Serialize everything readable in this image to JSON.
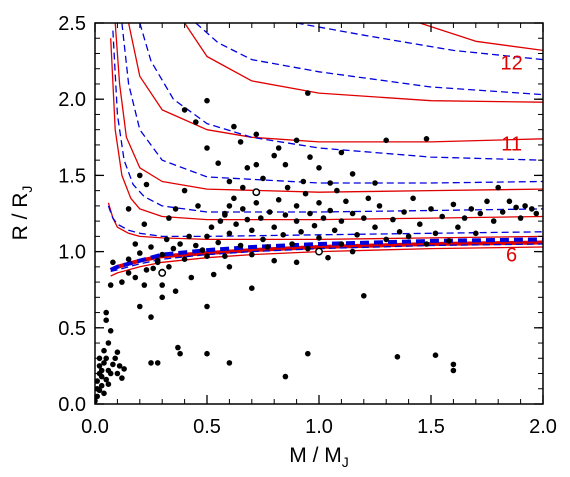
{
  "chart_data": {
    "type": "scatter",
    "xlabel": {
      "main": "M / M",
      "sub": "J"
    },
    "ylabel": {
      "main": "R / R",
      "sub": "J"
    },
    "xlim": [
      0.0,
      2.0
    ],
    "ylim": [
      0.0,
      2.5
    ],
    "x_ticks": [
      "0.0",
      "0.5",
      "1.0",
      "1.5",
      "2.0"
    ],
    "y_ticks": [
      "0.0",
      "0.5",
      "1.0",
      "1.5",
      "2.0",
      "2.5"
    ],
    "grid": false,
    "legend": "none",
    "colors": {
      "solid": "#e00000",
      "dashed": "#0000dd",
      "points": "#000000"
    },
    "curve_labels": [
      {
        "text": "12",
        "x": 1.86,
        "y": 2.24
      },
      {
        "text": "11",
        "x": 1.86,
        "y": 1.71
      },
      {
        "text": "6",
        "x": 1.86,
        "y": 0.98
      }
    ],
    "model_curves": [
      {
        "style": "solid-thick",
        "points": [
          [
            0.07,
            0.88
          ],
          [
            0.1,
            0.9
          ],
          [
            0.2,
            0.94
          ],
          [
            0.3,
            0.97
          ],
          [
            0.5,
            0.99
          ],
          [
            0.7,
            1.01
          ],
          [
            1.0,
            1.03
          ],
          [
            1.5,
            1.05
          ],
          [
            2.0,
            1.06
          ]
        ]
      },
      {
        "style": "dashed-thick",
        "points": [
          [
            0.07,
            0.88
          ],
          [
            0.1,
            0.9
          ],
          [
            0.2,
            0.94
          ],
          [
            0.3,
            0.98
          ],
          [
            0.5,
            1.01
          ],
          [
            0.7,
            1.03
          ],
          [
            1.0,
            1.05
          ],
          [
            1.5,
            1.07
          ],
          [
            2.0,
            1.08
          ]
        ]
      },
      {
        "style": "solid",
        "points": [
          [
            0.07,
            0.84
          ],
          [
            0.1,
            0.86
          ],
          [
            0.2,
            0.9
          ],
          [
            0.3,
            0.93
          ],
          [
            0.5,
            0.96
          ],
          [
            0.7,
            0.98
          ],
          [
            1.0,
            1.0
          ],
          [
            1.5,
            1.02
          ],
          [
            2.0,
            1.03
          ]
        ]
      },
      {
        "style": "dashed",
        "points": [
          [
            0.07,
            0.87
          ],
          [
            0.1,
            0.88
          ],
          [
            0.2,
            0.92
          ],
          [
            0.3,
            0.95
          ],
          [
            0.5,
            0.98
          ],
          [
            0.7,
            1.0
          ],
          [
            1.0,
            1.02
          ],
          [
            1.5,
            1.04
          ],
          [
            2.0,
            1.05
          ]
        ]
      },
      {
        "style": "solid",
        "points": [
          [
            0.06,
            1.32
          ],
          [
            0.08,
            1.22
          ],
          [
            0.1,
            1.16
          ],
          [
            0.15,
            1.12
          ],
          [
            0.2,
            1.1
          ],
          [
            0.3,
            1.09
          ],
          [
            0.5,
            1.08
          ],
          [
            1.0,
            1.08
          ],
          [
            1.5,
            1.09
          ],
          [
            2.0,
            1.1
          ]
        ]
      },
      {
        "style": "dashed",
        "points": [
          [
            0.06,
            1.3
          ],
          [
            0.08,
            1.22
          ],
          [
            0.1,
            1.18
          ],
          [
            0.15,
            1.14
          ],
          [
            0.2,
            1.12
          ],
          [
            0.3,
            1.1
          ],
          [
            0.5,
            1.1
          ],
          [
            1.0,
            1.11
          ],
          [
            1.5,
            1.12
          ],
          [
            2.0,
            1.13
          ]
        ]
      },
      {
        "style": "solid",
        "points": [
          [
            0.07,
            2.4
          ],
          [
            0.09,
            1.8
          ],
          [
            0.12,
            1.5
          ],
          [
            0.16,
            1.35
          ],
          [
            0.2,
            1.28
          ],
          [
            0.3,
            1.23
          ],
          [
            0.5,
            1.21
          ],
          [
            1.0,
            1.21
          ],
          [
            1.5,
            1.22
          ],
          [
            2.0,
            1.23
          ]
        ]
      },
      {
        "style": "dashed",
        "points": [
          [
            0.08,
            2.45
          ],
          [
            0.1,
            1.9
          ],
          [
            0.13,
            1.6
          ],
          [
            0.17,
            1.44
          ],
          [
            0.22,
            1.36
          ],
          [
            0.3,
            1.3
          ],
          [
            0.5,
            1.26
          ],
          [
            1.0,
            1.26
          ],
          [
            1.5,
            1.27
          ],
          [
            2.0,
            1.28
          ]
        ]
      },
      {
        "style": "solid",
        "points": [
          [
            0.09,
            2.5
          ],
          [
            0.11,
            2.1
          ],
          [
            0.14,
            1.75
          ],
          [
            0.2,
            1.55
          ],
          [
            0.3,
            1.46
          ],
          [
            0.5,
            1.41
          ],
          [
            1.0,
            1.39
          ],
          [
            1.5,
            1.4
          ],
          [
            2.0,
            1.41
          ]
        ]
      },
      {
        "style": "dashed",
        "points": [
          [
            0.12,
            2.5
          ],
          [
            0.15,
            2.1
          ],
          [
            0.2,
            1.8
          ],
          [
            0.3,
            1.6
          ],
          [
            0.5,
            1.49
          ],
          [
            1.0,
            1.45
          ],
          [
            1.5,
            1.45
          ],
          [
            2.0,
            1.46
          ]
        ]
      },
      {
        "style": "solid",
        "points": [
          [
            0.15,
            2.5
          ],
          [
            0.2,
            2.15
          ],
          [
            0.3,
            1.93
          ],
          [
            0.5,
            1.8
          ],
          [
            0.7,
            1.75
          ],
          [
            1.0,
            1.72
          ],
          [
            1.5,
            1.72
          ],
          [
            2.0,
            1.74
          ]
        ]
      },
      {
        "style": "dashed",
        "points": [
          [
            0.2,
            2.5
          ],
          [
            0.25,
            2.25
          ],
          [
            0.35,
            2.0
          ],
          [
            0.5,
            1.84
          ],
          [
            0.7,
            1.75
          ],
          [
            1.0,
            1.68
          ],
          [
            1.5,
            1.62
          ],
          [
            2.0,
            1.6
          ]
        ]
      },
      {
        "style": "solid",
        "points": [
          [
            0.4,
            2.5
          ],
          [
            0.5,
            2.28
          ],
          [
            0.7,
            2.12
          ],
          [
            1.0,
            2.04
          ],
          [
            1.5,
            1.99
          ],
          [
            2.0,
            1.98
          ]
        ]
      },
      {
        "style": "dashed",
        "points": [
          [
            0.45,
            2.5
          ],
          [
            0.55,
            2.37
          ],
          [
            0.7,
            2.26
          ],
          [
            1.0,
            2.18
          ],
          [
            1.5,
            2.08
          ],
          [
            2.0,
            2.03
          ]
        ]
      },
      {
        "style": "solid",
        "points": [
          [
            1.45,
            2.5
          ],
          [
            1.7,
            2.38
          ],
          [
            2.0,
            2.32
          ]
        ]
      },
      {
        "style": "dashed",
        "points": [
          [
            0.9,
            2.5
          ],
          [
            1.2,
            2.42
          ],
          [
            1.6,
            2.32
          ],
          [
            2.0,
            2.26
          ]
        ]
      }
    ],
    "points": [
      [
        0.0,
        0.02
      ],
      [
        0.01,
        0.05
      ],
      [
        0.01,
        0.1
      ],
      [
        0.01,
        0.15
      ],
      [
        0.02,
        0.2
      ],
      [
        0.02,
        0.25
      ],
      [
        0.02,
        0.3
      ],
      [
        0.03,
        0.12
      ],
      [
        0.03,
        0.18
      ],
      [
        0.03,
        0.22
      ],
      [
        0.04,
        0.27
      ],
      [
        0.04,
        0.35
      ],
      [
        0.05,
        0.3
      ],
      [
        0.05,
        0.16
      ],
      [
        0.06,
        0.22
      ],
      [
        0.06,
        0.4
      ],
      [
        0.05,
        0.55
      ],
      [
        0.05,
        0.6
      ],
      [
        0.07,
        0.48
      ],
      [
        0.07,
        0.2
      ],
      [
        0.08,
        0.26
      ],
      [
        0.09,
        0.3
      ],
      [
        0.1,
        0.2
      ],
      [
        0.1,
        0.34
      ],
      [
        0.11,
        0.25
      ],
      [
        0.12,
        0.17
      ],
      [
        0.13,
        0.23
      ],
      [
        0.02,
        0.09
      ],
      [
        0.04,
        0.07
      ],
      [
        0.06,
        0.13
      ],
      [
        0.07,
        0.78
      ],
      [
        0.08,
        0.93
      ],
      [
        0.12,
        0.8
      ],
      [
        0.15,
        0.86
      ],
      [
        0.15,
        0.95
      ],
      [
        0.18,
        0.83
      ],
      [
        0.2,
        0.99
      ],
      [
        0.2,
        0.64
      ],
      [
        0.22,
        0.78
      ],
      [
        0.23,
        0.88
      ],
      [
        0.25,
        1.03
      ],
      [
        0.25,
        0.57
      ],
      [
        0.26,
        0.89
      ],
      [
        0.28,
        0.94
      ],
      [
        0.3,
        0.87
      ],
      [
        0.3,
        0.78
      ],
      [
        0.3,
        0.98
      ],
      [
        0.32,
        1.08
      ],
      [
        0.33,
        0.9
      ],
      [
        0.35,
        1.02
      ],
      [
        0.36,
        0.74
      ],
      [
        0.38,
        1.05
      ],
      [
        0.4,
        0.95
      ],
      [
        0.42,
        1.1
      ],
      [
        0.43,
        0.83
      ],
      [
        0.45,
        1.04
      ],
      [
        0.46,
        1.3
      ],
      [
        0.48,
        1.01
      ],
      [
        0.5,
        1.1
      ],
      [
        0.5,
        0.97
      ],
      [
        0.52,
        1.16
      ],
      [
        0.53,
        0.85
      ],
      [
        0.55,
        1.06
      ],
      [
        0.56,
        1.2
      ],
      [
        0.58,
        1.25
      ],
      [
        0.58,
        0.97
      ],
      [
        0.6,
        1.12
      ],
      [
        0.6,
        0.9
      ],
      [
        0.62,
        1.35
      ],
      [
        0.63,
        1.18
      ],
      [
        0.65,
        1.04
      ],
      [
        0.66,
        1.28
      ],
      [
        0.68,
        1.21
      ],
      [
        0.7,
        0.98
      ],
      [
        0.7,
        1.14
      ],
      [
        0.72,
        1.32
      ],
      [
        0.74,
        1.22
      ],
      [
        0.75,
        1.08
      ],
      [
        0.77,
        1.03
      ],
      [
        0.78,
        1.26
      ],
      [
        0.8,
        1.16
      ],
      [
        0.8,
        0.94
      ],
      [
        0.82,
        1.34
      ],
      [
        0.84,
        1.11
      ],
      [
        0.85,
        1.24
      ],
      [
        0.86,
        1.42
      ],
      [
        0.88,
        1.05
      ],
      [
        0.9,
        1.2
      ],
      [
        0.9,
        1.3
      ],
      [
        0.92,
        1.13
      ],
      [
        0.94,
        1.38
      ],
      [
        0.95,
        1.02
      ],
      [
        0.96,
        1.25
      ],
      [
        0.98,
        1.17
      ],
      [
        1.0,
        1.09
      ],
      [
        1.0,
        1.32
      ],
      [
        1.02,
        1.22
      ],
      [
        1.04,
        0.96
      ],
      [
        1.05,
        1.27
      ],
      [
        1.07,
        1.14
      ],
      [
        1.08,
        1.4
      ],
      [
        1.1,
        1.05
      ],
      [
        1.1,
        1.2
      ],
      [
        1.12,
        1.33
      ],
      [
        1.15,
        1.25
      ],
      [
        1.17,
        1.11
      ],
      [
        1.2,
        1.22
      ],
      [
        1.2,
        0.71
      ],
      [
        1.22,
        1.35
      ],
      [
        1.25,
        1.16
      ],
      [
        1.27,
        1.3
      ],
      [
        1.3,
        1.08
      ],
      [
        1.3,
        1.73
      ],
      [
        1.33,
        1.21
      ],
      [
        1.36,
        1.13
      ],
      [
        1.38,
        1.26
      ],
      [
        1.4,
        1.1
      ],
      [
        1.42,
        1.35
      ],
      [
        1.45,
        1.18
      ],
      [
        1.48,
        1.05
      ],
      [
        1.5,
        1.28
      ],
      [
        1.52,
        1.12
      ],
      [
        1.55,
        1.23
      ],
      [
        1.58,
        1.07
      ],
      [
        1.6,
        1.31
      ],
      [
        1.62,
        1.16
      ],
      [
        1.65,
        1.22
      ],
      [
        1.68,
        1.28
      ],
      [
        1.7,
        1.12
      ],
      [
        1.72,
        1.25
      ],
      [
        1.75,
        1.33
      ],
      [
        1.78,
        1.2
      ],
      [
        1.8,
        1.42
      ],
      [
        1.82,
        1.26
      ],
      [
        1.85,
        1.33
      ],
      [
        1.88,
        1.29
      ],
      [
        1.9,
        1.22
      ],
      [
        1.92,
        1.3
      ],
      [
        1.95,
        1.28
      ],
      [
        1.97,
        1.25
      ],
      [
        0.4,
        1.4
      ],
      [
        0.45,
        1.85
      ],
      [
        0.5,
        1.68
      ],
      [
        0.55,
        1.58
      ],
      [
        0.6,
        1.46
      ],
      [
        0.62,
        1.82
      ],
      [
        0.65,
        1.72
      ],
      [
        0.68,
        1.55
      ],
      [
        0.72,
        1.57
      ],
      [
        0.75,
        1.48
      ],
      [
        0.8,
        1.63
      ],
      [
        0.85,
        1.57
      ],
      [
        0.9,
        1.73
      ],
      [
        0.93,
        1.46
      ],
      [
        0.96,
        1.62
      ],
      [
        1.05,
        1.45
      ],
      [
        1.15,
        1.51
      ],
      [
        1.25,
        1.45
      ],
      [
        0.95,
        2.04
      ],
      [
        0.5,
        1.99
      ],
      [
        1.48,
        1.74
      ],
      [
        0.4,
        1.93
      ],
      [
        0.72,
        1.77
      ],
      [
        0.82,
        1.68
      ],
      [
        1.0,
        1.55
      ],
      [
        1.1,
        1.65
      ],
      [
        0.58,
        1.24
      ],
      [
        0.6,
        1.3
      ],
      [
        0.66,
        1.42
      ],
      [
        0.25,
        0.27
      ],
      [
        0.28,
        0.27
      ],
      [
        0.38,
        0.33
      ],
      [
        0.37,
        0.37
      ],
      [
        0.5,
        0.33
      ],
      [
        0.6,
        0.27
      ],
      [
        0.85,
        0.18
      ],
      [
        0.95,
        0.33
      ],
      [
        1.35,
        0.31
      ],
      [
        1.52,
        0.32
      ],
      [
        1.6,
        0.22
      ],
      [
        1.6,
        0.26
      ],
      [
        0.3,
        0.7
      ],
      [
        0.5,
        0.64
      ],
      [
        0.7,
        0.76
      ],
      [
        0.9,
        0.93
      ],
      [
        1.15,
        1.0
      ],
      [
        0.28,
        0.93
      ],
      [
        0.22,
        1.18
      ],
      [
        0.18,
        1.05
      ],
      [
        0.33,
        1.22
      ],
      [
        0.36,
        1.28
      ],
      [
        0.2,
        1.5
      ],
      [
        0.23,
        1.44
      ],
      [
        0.15,
        1.28
      ]
    ],
    "open_points": [
      [
        0.3,
        0.86
      ],
      [
        0.72,
        1.39
      ],
      [
        1.0,
        1.0
      ]
    ]
  }
}
